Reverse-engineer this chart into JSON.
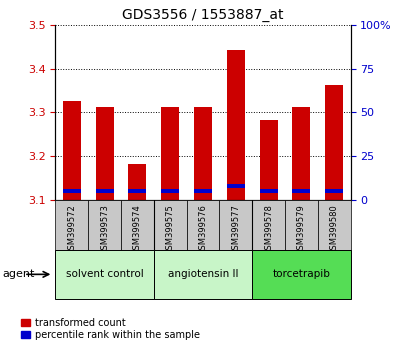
{
  "title": "GDS3556 / 1553887_at",
  "samples": [
    "GSM399572",
    "GSM399573",
    "GSM399574",
    "GSM399575",
    "GSM399576",
    "GSM399577",
    "GSM399578",
    "GSM399579",
    "GSM399580"
  ],
  "transformed_counts": [
    3.327,
    3.312,
    3.183,
    3.312,
    3.312,
    3.443,
    3.283,
    3.312,
    3.362
  ],
  "percentile_ranks": [
    5,
    5,
    5,
    5,
    5,
    8,
    5,
    5,
    5
  ],
  "baseline": 3.1,
  "ylim": [
    3.1,
    3.5
  ],
  "yticks": [
    3.1,
    3.2,
    3.3,
    3.4,
    3.5
  ],
  "right_yticks": [
    0,
    25,
    50,
    75,
    100
  ],
  "right_yticklabels": [
    "0",
    "25",
    "50",
    "75",
    "100%"
  ],
  "agent_groups": [
    {
      "label": "solvent control",
      "indices": [
        0,
        1,
        2
      ],
      "color": "#c8f5c8"
    },
    {
      "label": "angiotensin II",
      "indices": [
        3,
        4,
        5
      ],
      "color": "#c8f5c8"
    },
    {
      "label": "torcetrapib",
      "indices": [
        6,
        7,
        8
      ],
      "color": "#55dd55"
    }
  ],
  "bar_color": "#CC0000",
  "blue_color": "#0000CC",
  "bar_width": 0.55,
  "grid_color": "#000000",
  "tick_label_bg": "#C8C8C8",
  "legend_items": [
    {
      "label": "transformed count",
      "color": "#CC0000"
    },
    {
      "label": "percentile rank within the sample",
      "color": "#0000CC"
    }
  ],
  "agent_label": "agent",
  "left_tick_color": "#CC0000",
  "right_tick_color": "#0000CC"
}
